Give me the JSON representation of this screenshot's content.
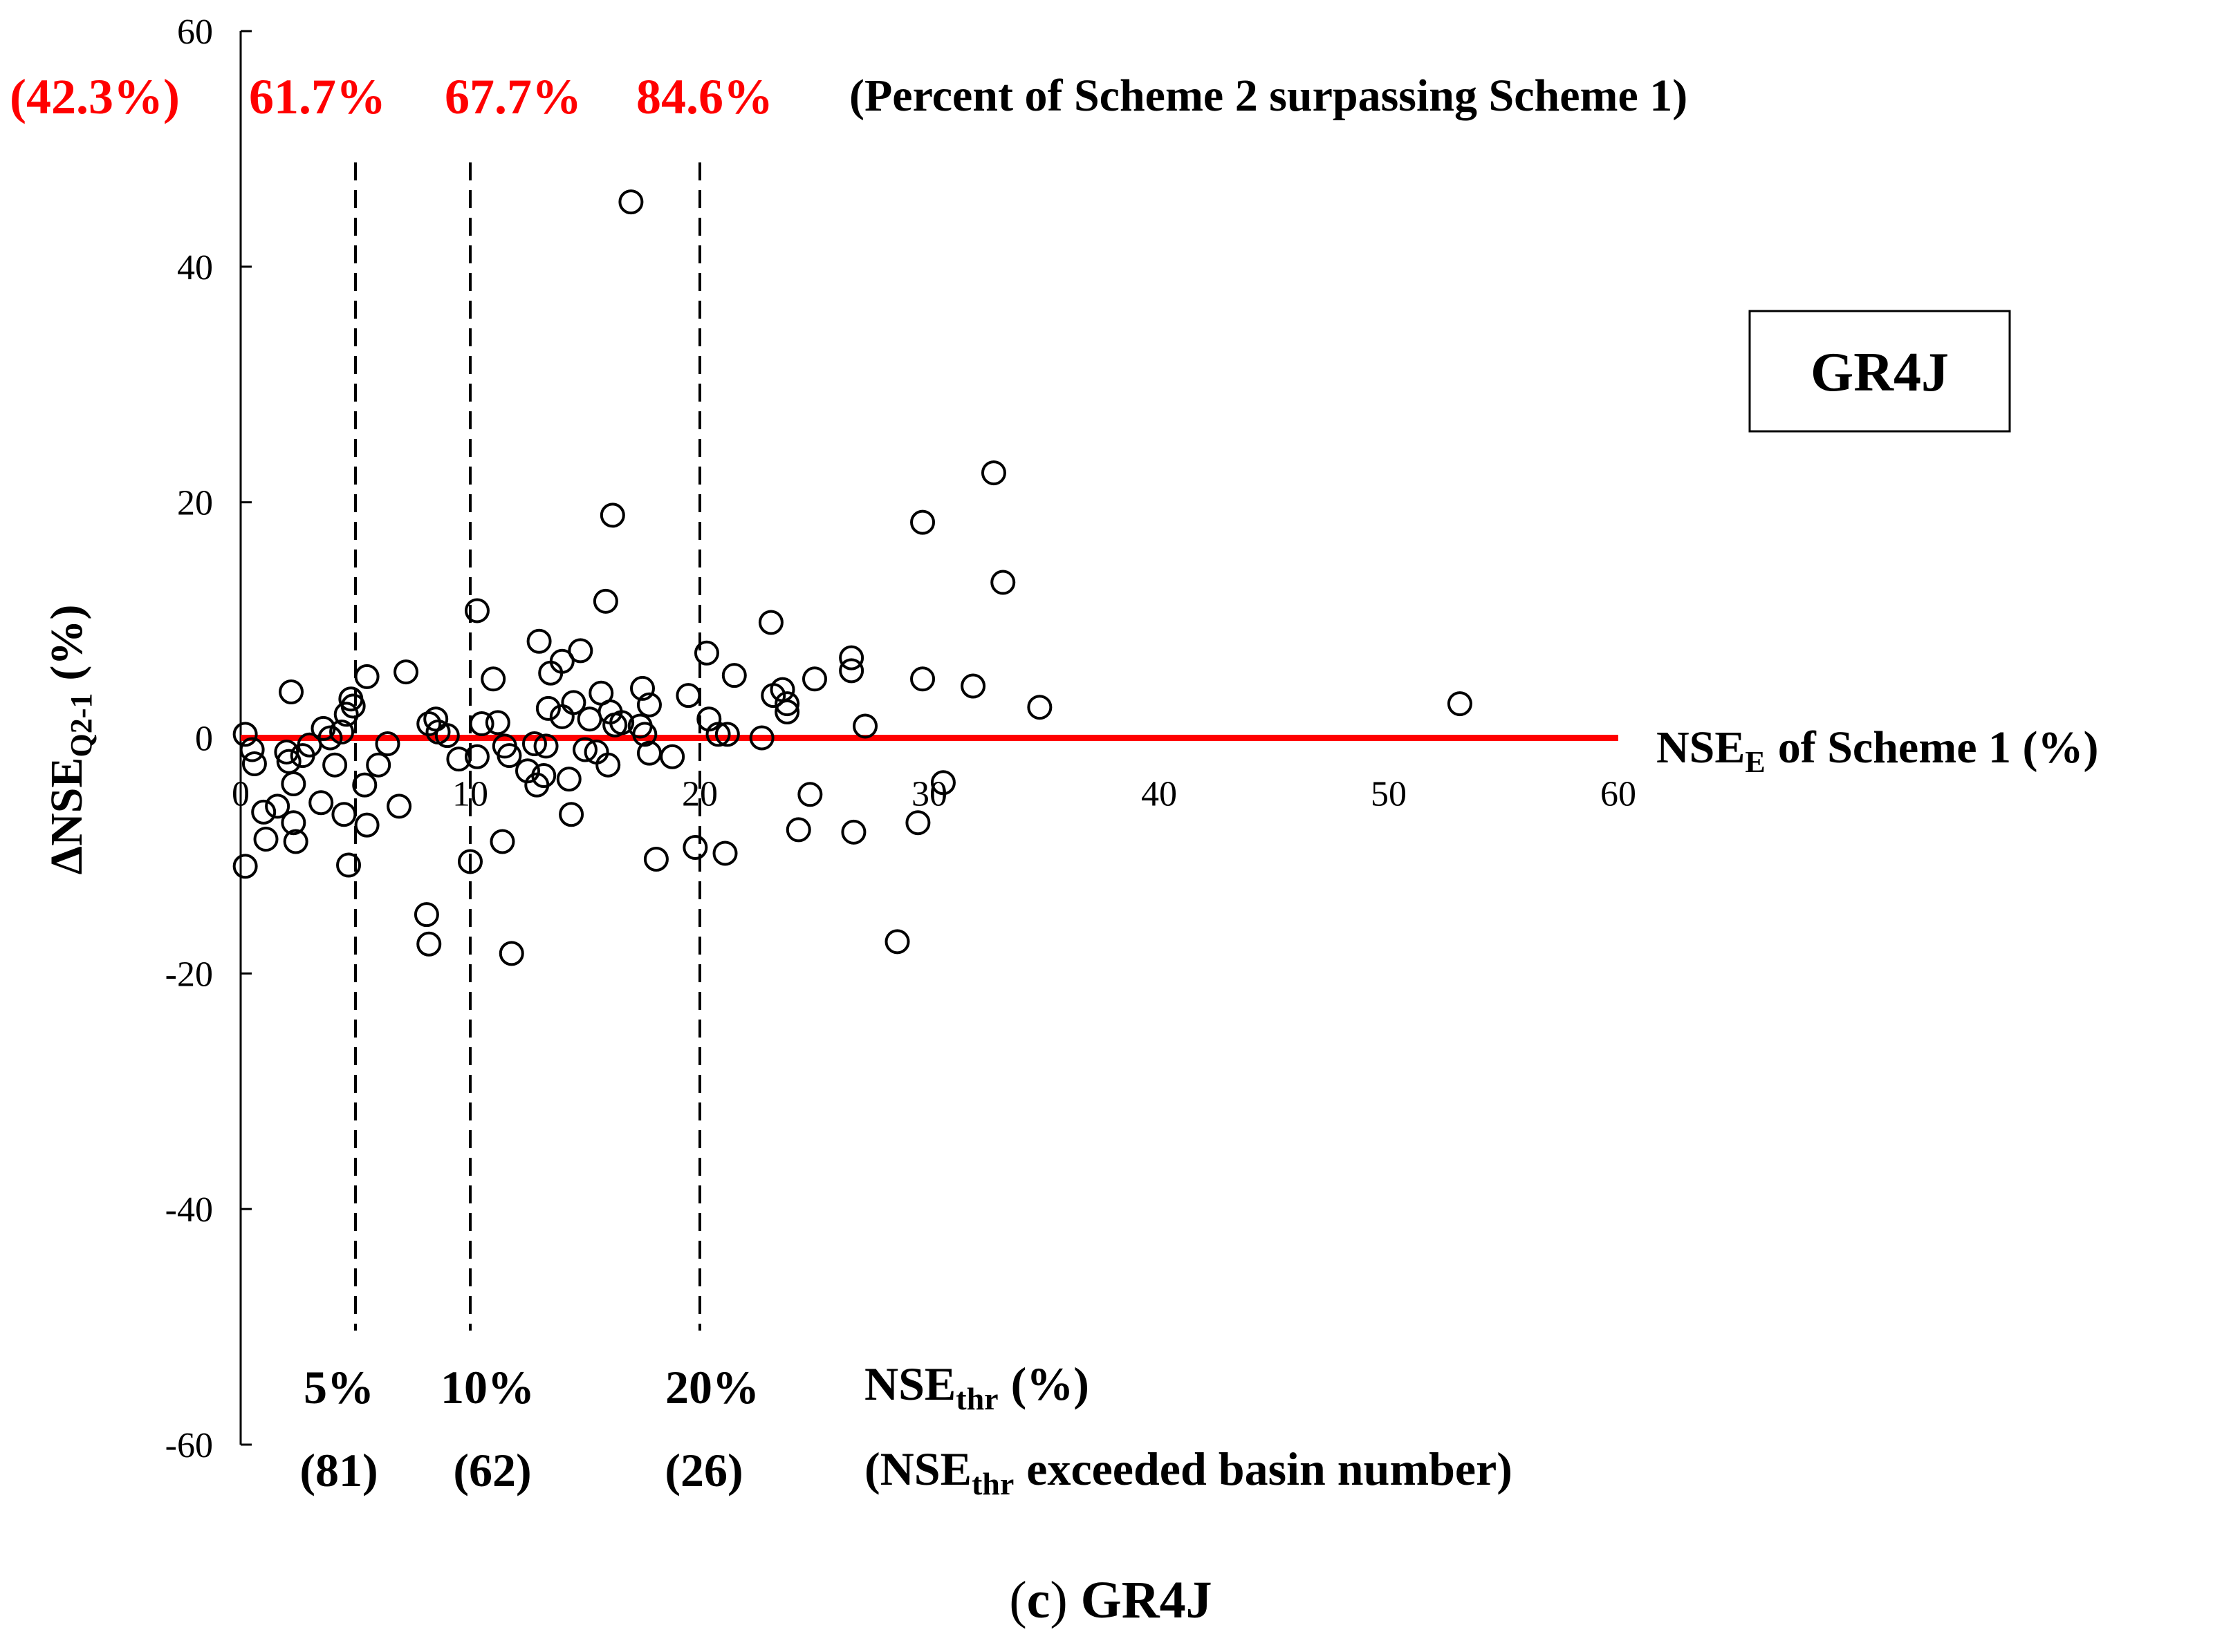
{
  "chart_data": {
    "type": "scatter",
    "title": "GR4J",
    "caption": {
      "letter": "c",
      "text": "GR4J"
    },
    "xlabel": {
      "main": "NSE",
      "sub": "E",
      "rest": "of Scheme 1 (%)"
    },
    "ylabel": {
      "main": "ΔNSE",
      "sub": "Q2-1",
      "rest": "(%)"
    },
    "xlim": [
      0,
      60
    ],
    "ylim": [
      -60,
      60
    ],
    "xticks": [
      0,
      10,
      20,
      30,
      40,
      50,
      60
    ],
    "yticks": [
      -60,
      -40,
      -20,
      0,
      20,
      40,
      60
    ],
    "xtick_labels": [
      "0",
      "10",
      "20",
      "30",
      "40",
      "50",
      "60"
    ],
    "ytick_labels": [
      "-60",
      "-40",
      "-20",
      "0",
      "20",
      "40",
      "60"
    ],
    "colors": {
      "zero_line": "#ff0000",
      "percent_text": "#ff0000",
      "markers": "#000000"
    },
    "thresholds": [
      {
        "x": 0,
        "percent": "(42.3%)"
      },
      {
        "x": 5,
        "label": "5%",
        "count": "(81)",
        "percent": "61.7%"
      },
      {
        "x": 10,
        "label": "10%",
        "count": "(62)",
        "percent": "67.7%"
      },
      {
        "x": 20,
        "label": "20%",
        "count": "(26)",
        "percent": "84.6%"
      }
    ],
    "percent_legend": "(Percent of Scheme 2 surpassing Scheme 1)",
    "thr_label": {
      "main": "NSE",
      "sub": "thr",
      "rest": "(%)"
    },
    "thr_count_label": {
      "pre": "(NSE",
      "sub": "thr",
      "rest": "exceeded basin number)"
    },
    "series": [
      {
        "name": "basins",
        "marker": "open-circle",
        "points": [
          [
            0.2,
            0.3
          ],
          [
            0.5,
            -1.0
          ],
          [
            0.6,
            -2.2
          ],
          [
            0.2,
            -10.9
          ],
          [
            1.0,
            -6.3
          ],
          [
            1.1,
            -8.6
          ],
          [
            1.6,
            -5.8
          ],
          [
            2.0,
            -1.2
          ],
          [
            2.1,
            -2.0
          ],
          [
            2.2,
            3.9
          ],
          [
            2.3,
            -3.9
          ],
          [
            2.3,
            -7.2
          ],
          [
            2.4,
            -8.8
          ],
          [
            2.7,
            -1.5
          ],
          [
            3.0,
            -0.6
          ],
          [
            3.5,
            -5.5
          ],
          [
            3.6,
            0.8
          ],
          [
            3.9,
            0.0
          ],
          [
            4.1,
            -2.3
          ],
          [
            4.5,
            -6.5
          ],
          [
            4.4,
            0.5
          ],
          [
            4.6,
            2.0
          ],
          [
            4.7,
            -10.8
          ],
          [
            4.8,
            3.3
          ],
          [
            4.9,
            2.7
          ],
          [
            5.4,
            -4.0
          ],
          [
            5.5,
            -7.4
          ],
          [
            5.5,
            5.2
          ],
          [
            6.0,
            -2.3
          ],
          [
            6.4,
            -0.5
          ],
          [
            6.9,
            -5.8
          ],
          [
            7.2,
            5.6
          ],
          [
            8.1,
            -15.0
          ],
          [
            8.2,
            -17.5
          ],
          [
            8.2,
            1.2
          ],
          [
            8.5,
            1.6
          ],
          [
            8.6,
            0.5
          ],
          [
            9.0,
            0.2
          ],
          [
            9.5,
            -1.8
          ],
          [
            10.0,
            -10.5
          ],
          [
            10.3,
            10.8
          ],
          [
            10.5,
            1.2
          ],
          [
            10.3,
            -1.6
          ],
          [
            11.0,
            5.0
          ],
          [
            11.2,
            1.3
          ],
          [
            11.4,
            -8.8
          ],
          [
            11.5,
            -0.7
          ],
          [
            11.7,
            -1.5
          ],
          [
            11.8,
            -18.3
          ],
          [
            12.5,
            -2.8
          ],
          [
            12.8,
            -0.5
          ],
          [
            12.9,
            -4.0
          ],
          [
            13.0,
            8.2
          ],
          [
            13.2,
            -3.2
          ],
          [
            13.3,
            -0.7
          ],
          [
            13.4,
            2.5
          ],
          [
            13.5,
            5.5
          ],
          [
            14.0,
            6.5
          ],
          [
            14.0,
            1.8
          ],
          [
            14.3,
            -3.5
          ],
          [
            14.4,
            -6.5
          ],
          [
            14.5,
            3.0
          ],
          [
            14.8,
            7.4
          ],
          [
            15.0,
            -1.0
          ],
          [
            15.2,
            1.6
          ],
          [
            15.5,
            -1.2
          ],
          [
            15.7,
            3.8
          ],
          [
            15.9,
            11.6
          ],
          [
            16.0,
            -2.3
          ],
          [
            16.1,
            2.2
          ],
          [
            16.2,
            18.9
          ],
          [
            16.3,
            1.1
          ],
          [
            16.6,
            1.3
          ],
          [
            17.0,
            45.5
          ],
          [
            17.4,
            1.0
          ],
          [
            17.5,
            4.2
          ],
          [
            17.6,
            0.3
          ],
          [
            17.8,
            2.8
          ],
          [
            17.8,
            -1.3
          ],
          [
            18.1,
            -10.3
          ],
          [
            18.8,
            -1.6
          ],
          [
            19.5,
            3.6
          ],
          [
            19.8,
            -9.3
          ],
          [
            20.3,
            7.2
          ],
          [
            20.4,
            1.6
          ],
          [
            20.8,
            0.3
          ],
          [
            21.1,
            -9.8
          ],
          [
            21.2,
            0.3
          ],
          [
            21.5,
            5.3
          ],
          [
            22.7,
            0.0
          ],
          [
            23.1,
            9.8
          ],
          [
            23.2,
            3.6
          ],
          [
            23.6,
            4.1
          ],
          [
            23.8,
            2.9
          ],
          [
            23.8,
            2.2
          ],
          [
            24.3,
            -7.8
          ],
          [
            24.8,
            -4.8
          ],
          [
            25.0,
            5.0
          ],
          [
            26.6,
            6.8
          ],
          [
            26.6,
            5.7
          ],
          [
            26.7,
            -8.0
          ],
          [
            27.2,
            1.0
          ],
          [
            28.6,
            -17.3
          ],
          [
            29.5,
            -7.2
          ],
          [
            29.7,
            18.3
          ],
          [
            29.7,
            5.0
          ],
          [
            30.6,
            -3.8
          ],
          [
            31.9,
            4.4
          ],
          [
            32.8,
            22.5
          ],
          [
            33.2,
            13.2
          ],
          [
            34.8,
            2.6
          ],
          [
            53.1,
            2.9
          ]
        ]
      }
    ]
  }
}
